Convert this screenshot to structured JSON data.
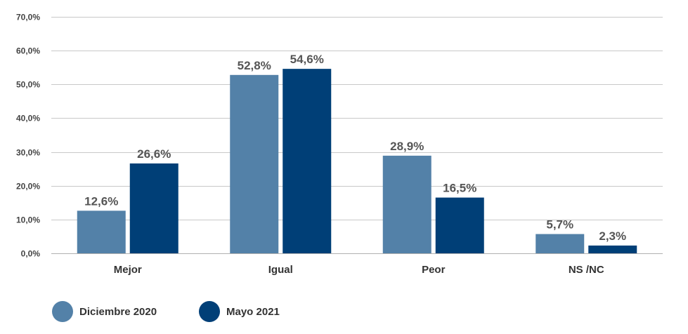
{
  "chart_data": {
    "type": "bar",
    "categories": [
      "Mejor",
      "Igual",
      "Peor",
      "NS /NC"
    ],
    "series": [
      {
        "name": "Diciembre 2020",
        "values": [
          12.6,
          52.8,
          28.9,
          5.7
        ],
        "labels": [
          "12,6%",
          "52,8%",
          "28,9%",
          "5,7%"
        ],
        "color": "#5381a8"
      },
      {
        "name": "Mayo 2021",
        "values": [
          26.6,
          54.6,
          16.5,
          2.3
        ],
        "labels": [
          "26,6%",
          "54,6%",
          "16,5%",
          "2,3%"
        ],
        "color": "#003f77"
      }
    ],
    "ylim": [
      0,
      70
    ],
    "yticks": [
      0,
      10,
      20,
      30,
      40,
      50,
      60,
      70
    ],
    "ytick_labels": [
      "0,0%",
      "10,0%",
      "20,0%",
      "30,0%",
      "40,0%",
      "50,0%",
      "60,0%",
      "70,0%"
    ],
    "grid": true,
    "legend_position": "bottom-left",
    "title": "",
    "xlabel": "",
    "ylabel": ""
  }
}
